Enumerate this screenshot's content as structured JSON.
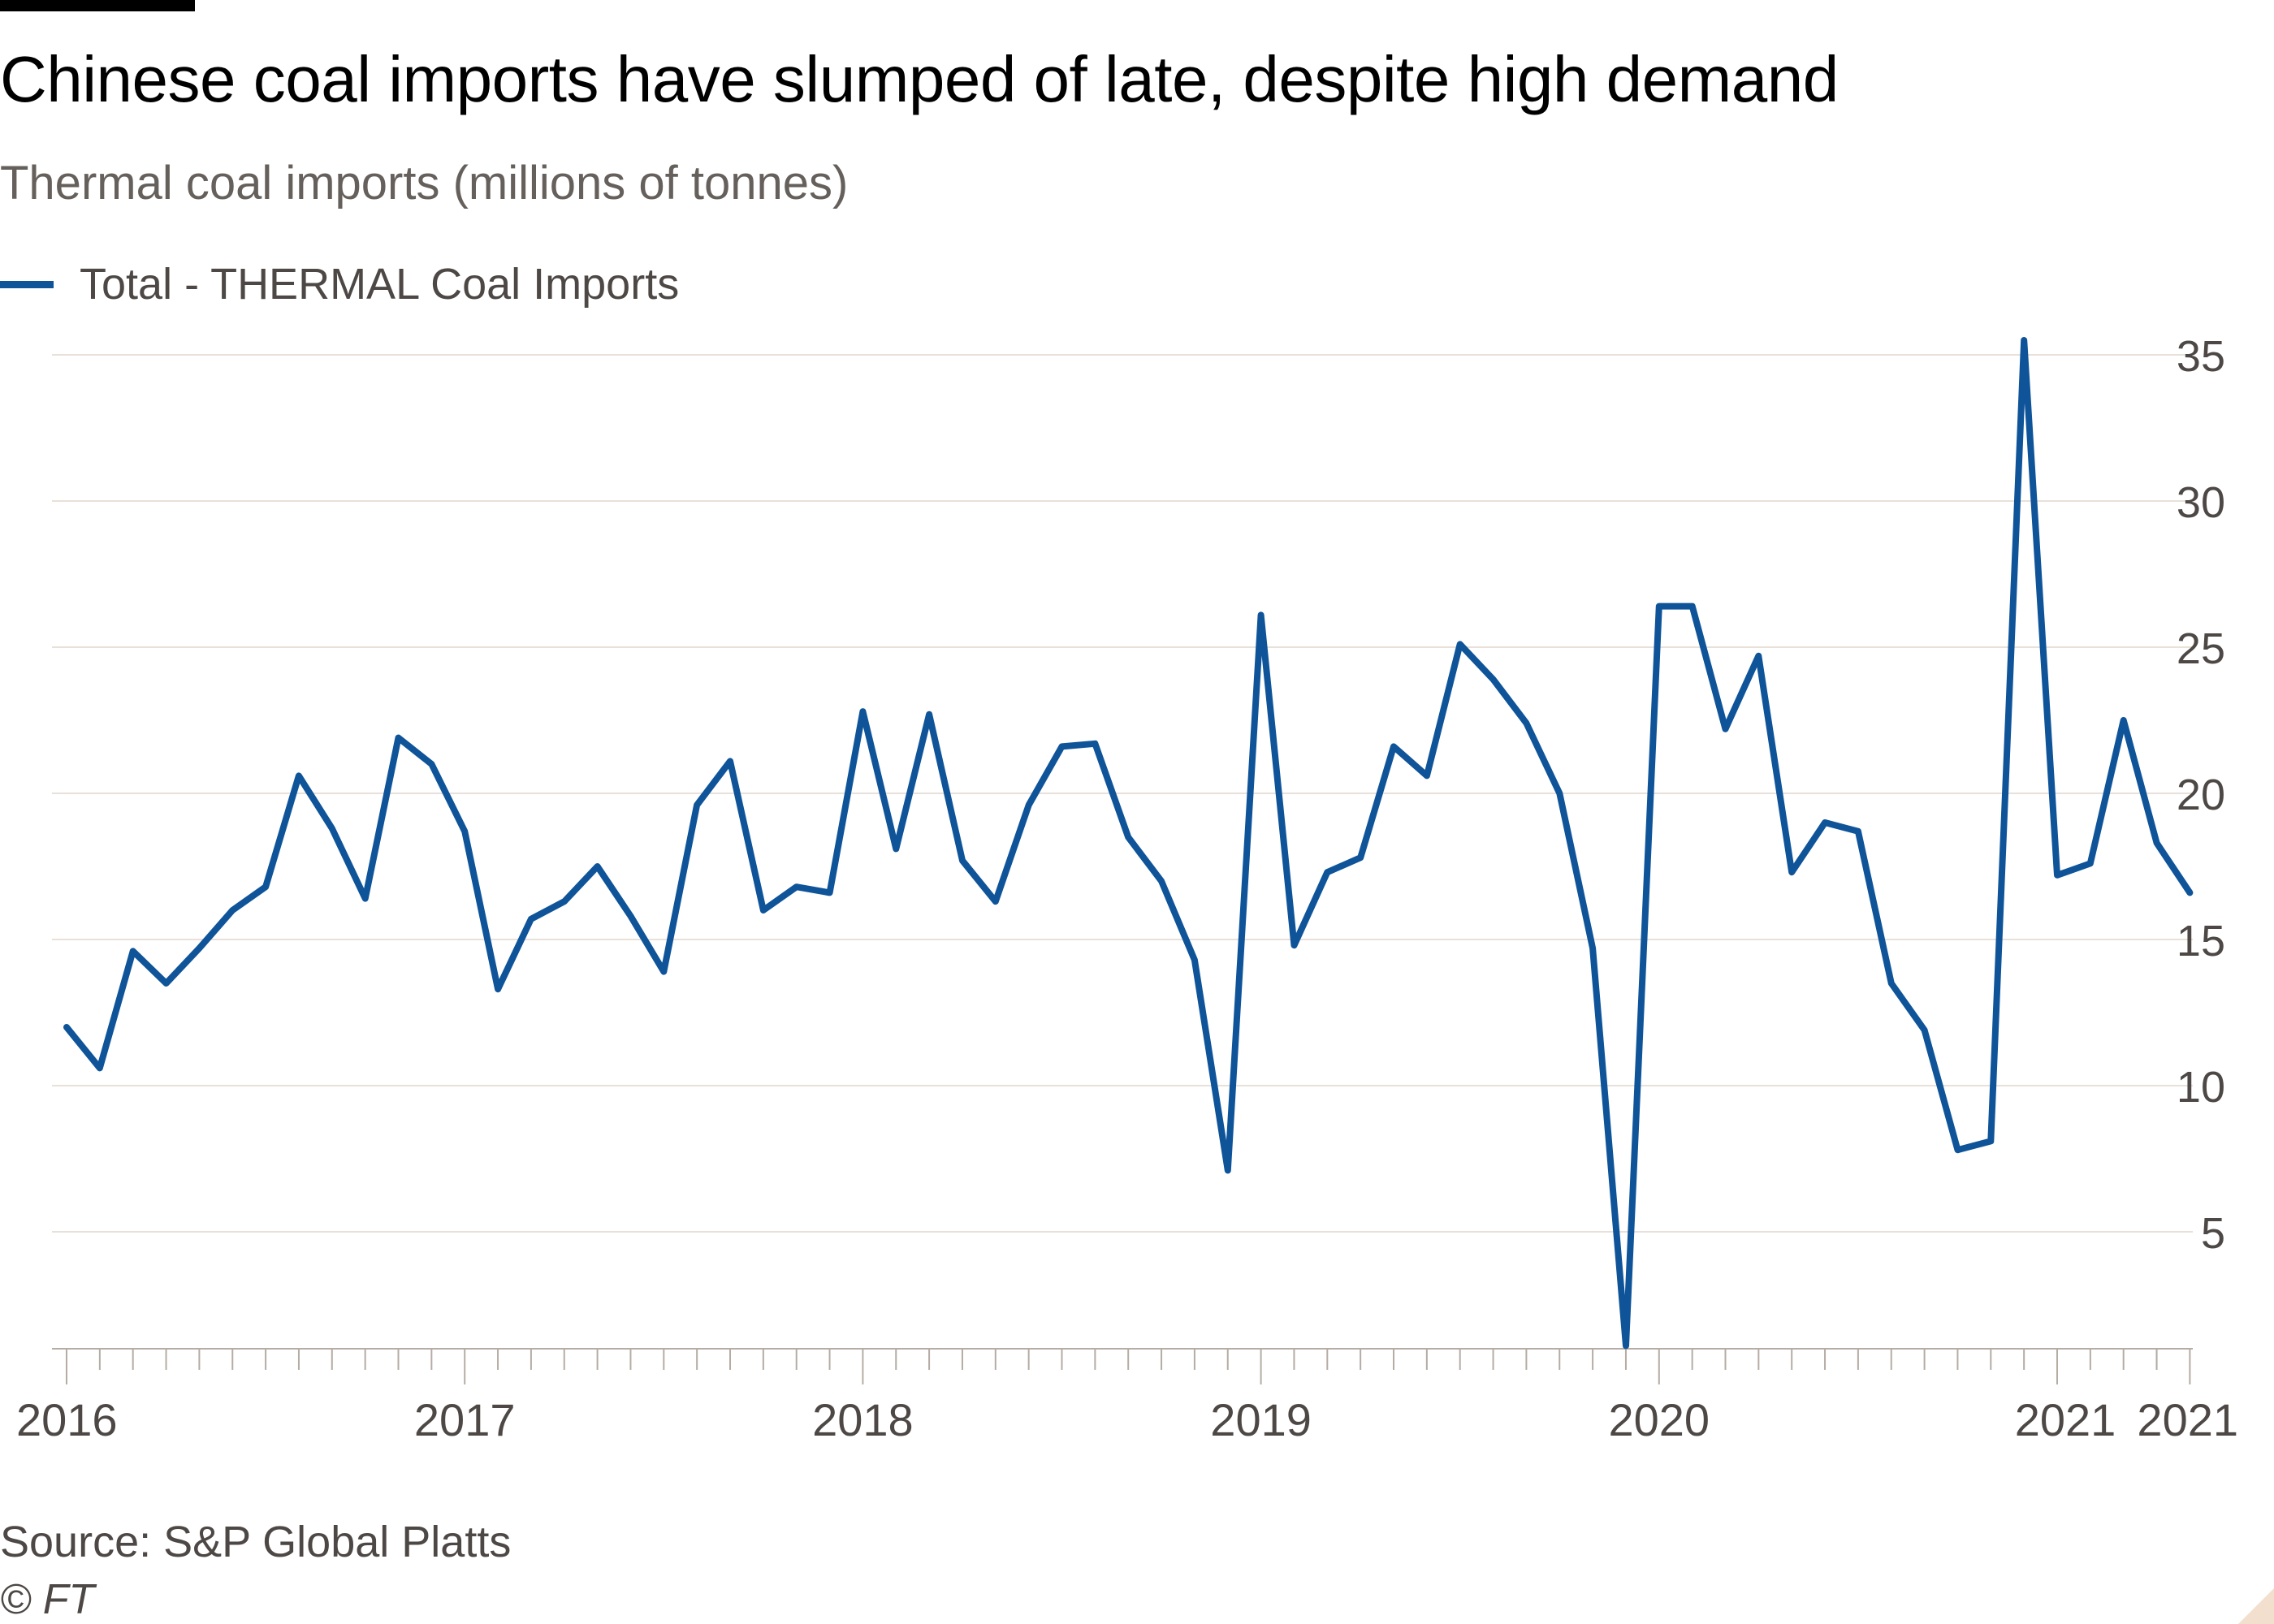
{
  "chart_data": {
    "type": "line",
    "title": "Chinese coal imports have slumped of late, despite high demand",
    "subtitle": "Thermal coal imports (millions of tonnes)",
    "legend": {
      "placement": "top-left"
    },
    "series": [
      {
        "name": "Total - THERMAL Coal Imports",
        "color": "#0f5499",
        "x": [
          "2016-01",
          "2016-02",
          "2016-03",
          "2016-04",
          "2016-05",
          "2016-06",
          "2016-07",
          "2016-08",
          "2016-09",
          "2016-10",
          "2016-11",
          "2016-12",
          "2017-01",
          "2017-02",
          "2017-03",
          "2017-04",
          "2017-05",
          "2017-06",
          "2017-07",
          "2017-08",
          "2017-09",
          "2017-10",
          "2017-11",
          "2017-12",
          "2018-01",
          "2018-02",
          "2018-03",
          "2018-04",
          "2018-05",
          "2018-06",
          "2018-07",
          "2018-08",
          "2018-09",
          "2018-10",
          "2018-11",
          "2018-12",
          "2019-01",
          "2019-02",
          "2019-03",
          "2019-04",
          "2019-05",
          "2019-06",
          "2019-07",
          "2019-08",
          "2019-09",
          "2019-10",
          "2019-11",
          "2019-12",
          "2020-01",
          "2020-02",
          "2020-03",
          "2020-04",
          "2020-05",
          "2020-06",
          "2020-07",
          "2020-08",
          "2020-09",
          "2020-10",
          "2020-11",
          "2020-12",
          "2021-01",
          "2021-02",
          "2021-03",
          "2021-04",
          "2021-05"
        ],
        "values": [
          12.0,
          10.6,
          14.6,
          13.5,
          14.7,
          16.0,
          16.8,
          20.6,
          18.8,
          16.4,
          21.9,
          21.0,
          18.7,
          13.3,
          15.7,
          16.3,
          17.5,
          15.8,
          13.9,
          19.6,
          21.1,
          16.0,
          16.8,
          16.6,
          22.8,
          18.1,
          22.7,
          17.7,
          16.3,
          19.6,
          21.6,
          21.7,
          18.5,
          17.0,
          14.3,
          7.1,
          26.1,
          14.8,
          17.3,
          17.8,
          21.6,
          20.6,
          25.1,
          23.9,
          22.4,
          20.0,
          14.7,
          1.1,
          26.4,
          26.4,
          22.2,
          24.7,
          17.3,
          19.0,
          18.7,
          13.5,
          11.9,
          7.8,
          8.1,
          35.5,
          17.2,
          17.6,
          22.5,
          18.3,
          16.6
        ]
      }
    ],
    "x_ticks": [
      "2016",
      "2017",
      "2018",
      "2019",
      "2020",
      "2021",
      "2021"
    ],
    "y_ticks": [
      "5",
      "10",
      "15",
      "20",
      "25",
      "30",
      "35"
    ],
    "ylim": [
      1,
      36
    ],
    "y_axis_side": "right",
    "grid": true,
    "colors": {
      "line": "#0f5499",
      "grid": "#e9e1d9",
      "axis": "#b5aca4",
      "tick_label": "#4d4845"
    }
  },
  "footer": {
    "source": "Source: S&P Global Platts",
    "copyright": "© FT"
  }
}
